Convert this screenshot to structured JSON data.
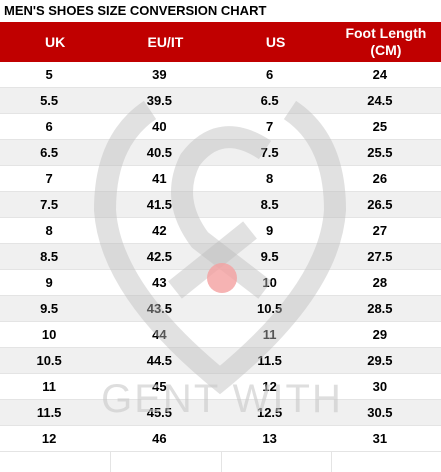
{
  "title": "MEN'S SHOES SIZE CONVERSION CHART",
  "table": {
    "columns": [
      "UK",
      "EU/IT",
      "US",
      "Foot Length (CM)"
    ],
    "rows": [
      [
        "5",
        "39",
        "6",
        "24"
      ],
      [
        "5.5",
        "39.5",
        "6.5",
        "24.5"
      ],
      [
        "6",
        "40",
        "7",
        "25"
      ],
      [
        "6.5",
        "40.5",
        "7.5",
        "25.5"
      ],
      [
        "7",
        "41",
        "8",
        "26"
      ],
      [
        "7.5",
        "41.5",
        "8.5",
        "26.5"
      ],
      [
        "8",
        "42",
        "9",
        "27"
      ],
      [
        "8.5",
        "42.5",
        "9.5",
        "27.5"
      ],
      [
        "9",
        "43",
        "10",
        "28"
      ],
      [
        "9.5",
        "43.5",
        "10.5",
        "28.5"
      ],
      [
        "10",
        "44",
        "11",
        "29"
      ],
      [
        "10.5",
        "44.5",
        "11.5",
        "29.5"
      ],
      [
        "11",
        "45",
        "12",
        "30"
      ],
      [
        "11.5",
        "45.5",
        "12.5",
        "30.5"
      ],
      [
        "12",
        "46",
        "13",
        "31"
      ]
    ]
  },
  "watermark": "GENT WITH"
}
